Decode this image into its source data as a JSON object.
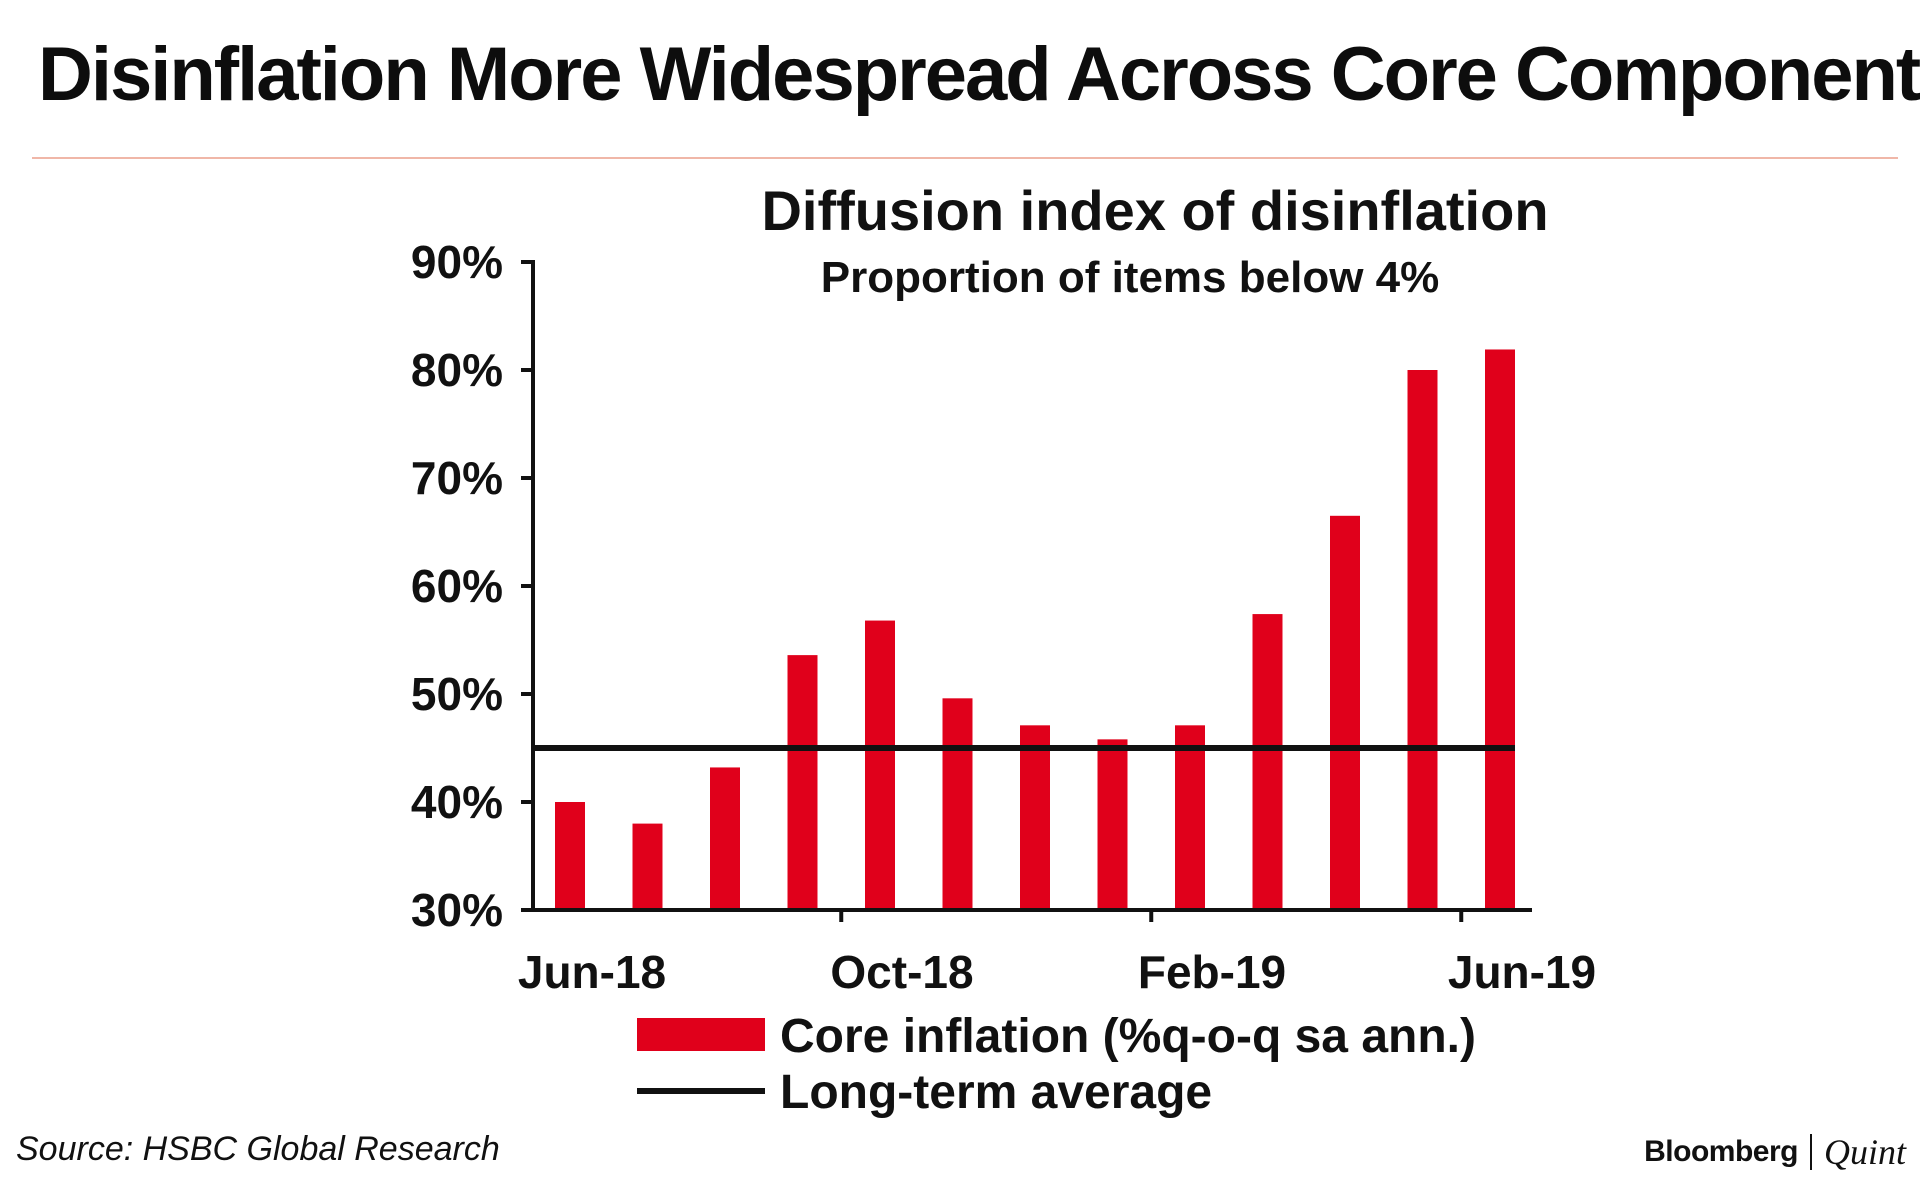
{
  "headline": "Disinflation More Widespread Across Core Components",
  "colors": {
    "bar": "#e0001b",
    "line": "#111111",
    "rule": "#f0b7a8"
  },
  "chart_data": {
    "type": "bar",
    "title": "Diffusion index of disinflation",
    "subtitle": "Proportion of items below 4%",
    "xlabel": "",
    "ylabel": "",
    "ylim": [
      30,
      90
    ],
    "yticks": [
      30,
      40,
      50,
      60,
      70,
      80,
      90
    ],
    "ytick_labels": [
      "30%",
      "40%",
      "50%",
      "60%",
      "70%",
      "80%",
      "90%"
    ],
    "x_ticks": [
      {
        "label": "Jun-18",
        "index": 0
      },
      {
        "label": "Oct-18",
        "index": 4
      },
      {
        "label": "Feb-19",
        "index": 8
      },
      {
        "label": "Jun-19",
        "index": 12
      }
    ],
    "categories": [
      "Jun-18",
      "Jul-18",
      "Aug-18",
      "Sep-18",
      "Oct-18",
      "Nov-18",
      "Dec-18",
      "Jan-19",
      "Feb-19",
      "Mar-19",
      "Apr-19",
      "May-19",
      "Jun-19"
    ],
    "series": [
      {
        "name": "Core inflation (%q-o-q sa ann.)",
        "kind": "bar",
        "values": [
          40.0,
          38.0,
          43.2,
          53.6,
          56.8,
          49.6,
          47.1,
          45.8,
          47.1,
          57.4,
          66.5,
          80.0,
          81.9
        ]
      },
      {
        "name": "Long-term average",
        "kind": "line",
        "value": 45.0
      }
    ],
    "legend": [
      "Core inflation (%q-o-q sa ann.)",
      "Long-term average"
    ],
    "legend_position": "bottom"
  },
  "source": "Source: HSBC Global Research",
  "brand": {
    "primary": "Bloomberg",
    "secondary": "Quint"
  }
}
